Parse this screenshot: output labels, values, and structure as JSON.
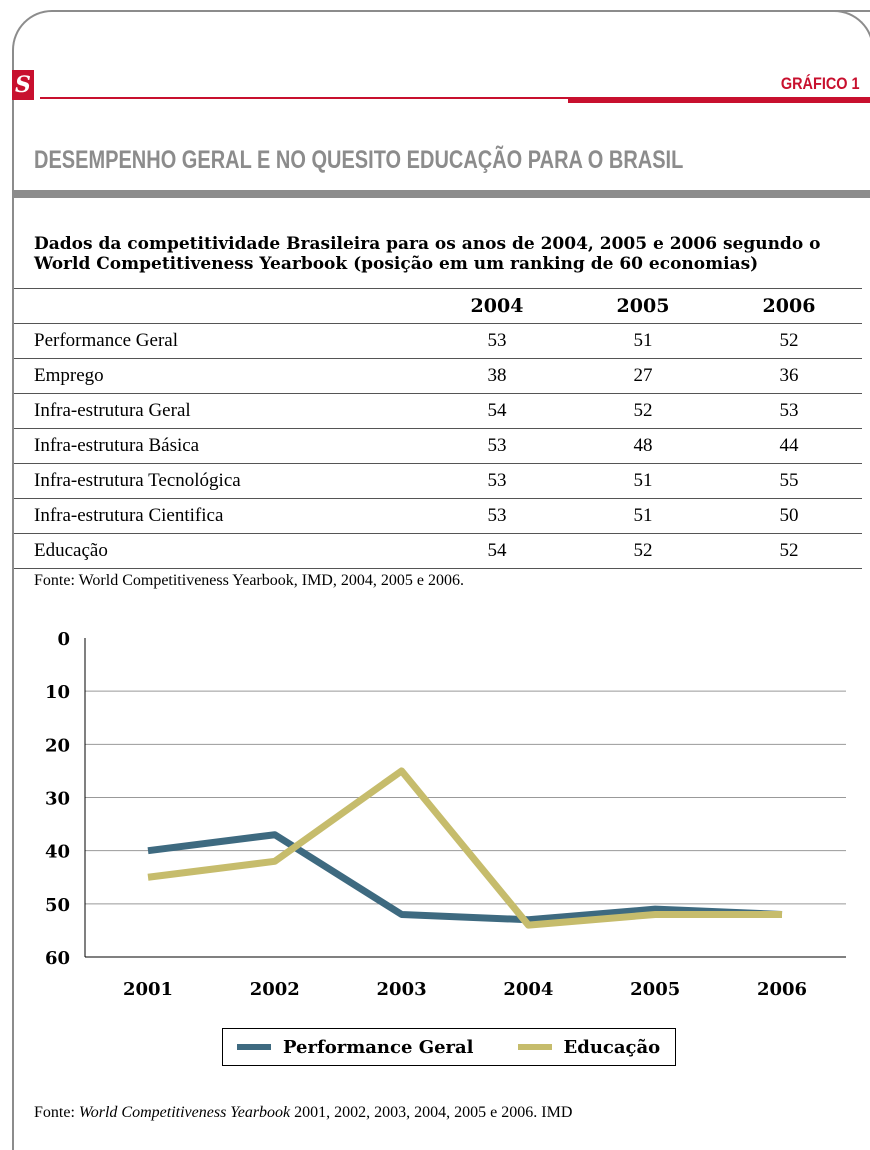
{
  "header": {
    "logo_letter": "S",
    "figure_label": "GRÁFICO 1",
    "title": "DESEMPENHO GERAL E NO QUESITO EDUCAÇÃO PARA O BRASIL"
  },
  "table": {
    "caption": "Dados da competitividade Brasileira para os anos de 2004, 2005 e 2006 segundo o World Competitiveness Yearbook (posição em um ranking de 60 economias)",
    "columns": [
      "",
      "2004",
      "2005",
      "2006"
    ],
    "rows": [
      {
        "label": "Performance Geral",
        "v2004": "53",
        "v2005": "51",
        "v2006": "52"
      },
      {
        "label": "Emprego",
        "v2004": "38",
        "v2005": "27",
        "v2006": "36"
      },
      {
        "label": "Infra-estrutura Geral",
        "v2004": "54",
        "v2005": "52",
        "v2006": "53"
      },
      {
        "label": "Infra-estrutura Básica",
        "v2004": "53",
        "v2005": "48",
        "v2006": "44"
      },
      {
        "label": "Infra-estrutura Tecnológica",
        "v2004": "53",
        "v2005": "51",
        "v2006": "55"
      },
      {
        "label": "Infra-estrutura Cientifica",
        "v2004": "53",
        "v2005": "51",
        "v2006": "50"
      },
      {
        "label": "Educação",
        "v2004": "54",
        "v2005": "52",
        "v2006": "52"
      }
    ],
    "source": "Fonte: World Competitiveness Yearbook, IMD, 2004, 2005 e 2006."
  },
  "chart_data": {
    "type": "line",
    "categories": [
      "2001",
      "2002",
      "2003",
      "2004",
      "2005",
      "2006"
    ],
    "y_ticks": [
      "0",
      "10",
      "20",
      "30",
      "40",
      "50",
      "60"
    ],
    "ylim": [
      0,
      60
    ],
    "y_inverted": true,
    "grid": true,
    "legend_position": "bottom",
    "series": [
      {
        "name": "Performance Geral",
        "color": "#3e6a80",
        "values": [
          40,
          37,
          52,
          53,
          51,
          52
        ]
      },
      {
        "name": "Educação",
        "color": "#c6bc6c",
        "values": [
          45,
          42,
          25,
          54,
          52,
          52
        ]
      }
    ]
  },
  "source2": {
    "prefix": "Fonte: ",
    "italic": "World Competitiveness Yearbook",
    "suffix": " 2001, 2002, 2003, 2004, 2005 e 2006. IMD"
  }
}
